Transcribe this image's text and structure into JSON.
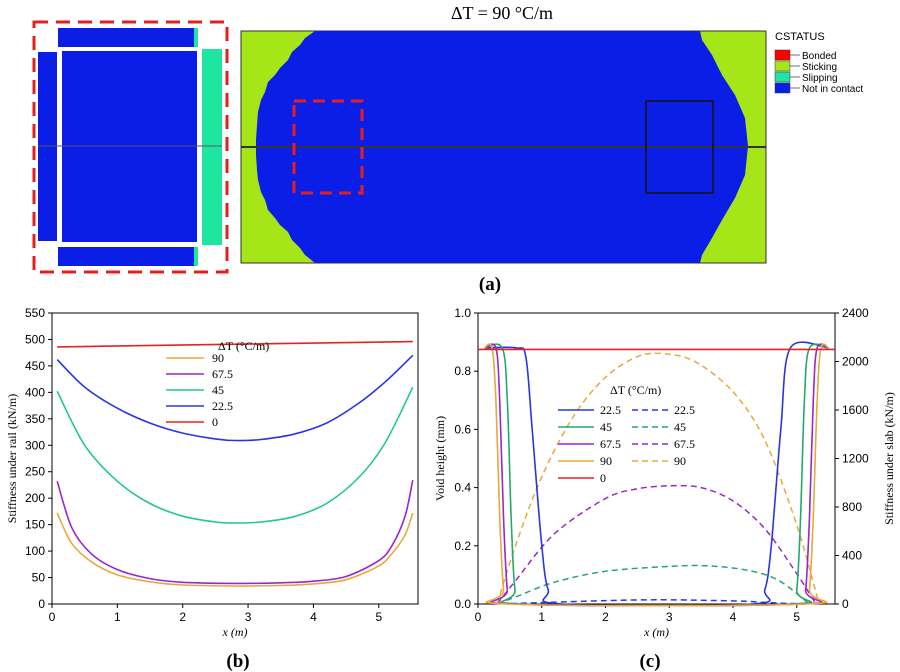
{
  "panel_a": {
    "label": "(a)",
    "title": "ΔT = 90 °C/m",
    "legend_title": "CSTATUS",
    "legend": [
      {
        "label": "Bonded",
        "color": "#ff0000"
      },
      {
        "label": "Sticking",
        "color": "#a6e619"
      },
      {
        "label": "Slipping",
        "color": "#1ee6a0"
      },
      {
        "label": "Not in contact",
        "color": "#0a1ee6"
      }
    ],
    "colors": {
      "blue": "#0a1ee6",
      "green": "#a6e619",
      "teal": "#1ee6a0",
      "red_dash": "#e4201e"
    }
  },
  "chart_data": [
    {
      "type": "line",
      "label": "(b)",
      "xlabel": "x (m)",
      "ylabel": "Stiffness under rail (kN/m)",
      "xlim": [
        0,
        5.6
      ],
      "ylim": [
        0,
        550
      ],
      "xticks": [
        0,
        1,
        2,
        3,
        4,
        5
      ],
      "yticks": [
        0,
        50,
        100,
        150,
        200,
        250,
        300,
        350,
        400,
        450,
        500,
        550
      ],
      "legend_title": "ΔT (°C/m)",
      "series": [
        {
          "name": "90",
          "color": "#e8a93a",
          "x": [
            0.08,
            0.3,
            0.6,
            1.0,
            1.5,
            2.0,
            2.8,
            3.5,
            4.0,
            4.5,
            5.0,
            5.2,
            5.4,
            5.52
          ],
          "y": [
            172,
            115,
            80,
            55,
            42,
            36,
            34,
            35,
            38,
            46,
            72,
            95,
            130,
            172
          ]
        },
        {
          "name": "67.5",
          "color": "#9b26c9",
          "x": [
            0.08,
            0.3,
            0.6,
            1.0,
            1.5,
            2.0,
            2.8,
            3.5,
            4.0,
            4.5,
            5.0,
            5.2,
            5.4,
            5.52
          ],
          "y": [
            232,
            145,
            95,
            65,
            48,
            41,
            39,
            40,
            43,
            52,
            82,
            110,
            165,
            234
          ]
        },
        {
          "name": "45",
          "color": "#25c49b",
          "x": [
            0.08,
            0.5,
            1.0,
            1.5,
            2.0,
            2.5,
            2.8,
            3.2,
            3.7,
            4.2,
            4.7,
            5.1,
            5.52
          ],
          "y": [
            402,
            300,
            232,
            190,
            166,
            155,
            153,
            155,
            165,
            190,
            240,
            305,
            410
          ]
        },
        {
          "name": "22.5",
          "color": "#2936e0",
          "x": [
            0.08,
            0.5,
            1.0,
            1.5,
            2.0,
            2.5,
            2.8,
            3.2,
            3.7,
            4.2,
            4.7,
            5.1,
            5.52
          ],
          "y": [
            462,
            410,
            370,
            342,
            323,
            312,
            309,
            311,
            321,
            342,
            380,
            420,
            470
          ]
        },
        {
          "name": "0",
          "color": "#e32323",
          "x": [
            0.08,
            5.52
          ],
          "y": [
            486,
            496
          ]
        }
      ]
    },
    {
      "type": "line",
      "label": "(c)",
      "xlabel": "x (m)",
      "ylabel": "Void height (mm)",
      "y2label": "Stiffness under slab (kN/m)",
      "xlim": [
        0,
        5.6
      ],
      "ylim": [
        0,
        1.0
      ],
      "y2lim": [
        0,
        2400
      ],
      "xticks": [
        0,
        1,
        2,
        3,
        4,
        5
      ],
      "yticks": [
        0.0,
        0.2,
        0.4,
        0.6,
        0.8,
        1.0
      ],
      "y2ticks": [
        0,
        400,
        800,
        1200,
        1600,
        2000,
        2400
      ],
      "legend_title": "ΔT (°C/m)",
      "legend_rows": [
        {
          "solid": "22.5",
          "dashed": "22.5",
          "color": "#2936e0"
        },
        {
          "solid": "45",
          "dashed": "45",
          "color": "#25a86e"
        },
        {
          "solid": "67.5",
          "dashed": "67.5",
          "color": "#9b26c9"
        },
        {
          "solid": "90",
          "dashed": "90",
          "color": "#e8a93a"
        },
        {
          "solid": "0",
          "dashed": "",
          "color": "#e32323"
        }
      ],
      "void_height_series": [
        {
          "name": "22.5",
          "color": "#2936e0",
          "x": [
            0.1,
            0.6,
            0.75,
            0.85,
            1.0,
            1.1,
            1.3,
            4.3,
            4.5,
            4.6,
            4.75,
            4.9,
            5.5
          ],
          "y": [
            0.88,
            0.88,
            0.85,
            0.6,
            0.2,
            0.05,
            0.0,
            0.0,
            0.05,
            0.2,
            0.6,
            0.88,
            0.88
          ]
        },
        {
          "name": "45",
          "color": "#25a86e",
          "x": [
            0.1,
            0.38,
            0.46,
            0.52,
            0.58,
            0.7,
            4.9,
            5.0,
            5.06,
            5.12,
            5.2,
            5.5
          ],
          "y": [
            0.88,
            0.88,
            0.7,
            0.3,
            0.05,
            0.0,
            0.0,
            0.05,
            0.3,
            0.7,
            0.88,
            0.88
          ]
        },
        {
          "name": "67.5",
          "color": "#9b26c9",
          "x": [
            0.1,
            0.28,
            0.34,
            0.4,
            0.46,
            0.55,
            5.05,
            5.14,
            5.2,
            5.26,
            5.32,
            5.5
          ],
          "y": [
            0.88,
            0.88,
            0.7,
            0.3,
            0.05,
            0.0,
            0.0,
            0.05,
            0.3,
            0.7,
            0.88,
            0.88
          ]
        },
        {
          "name": "90",
          "color": "#e8a93a",
          "x": [
            0.1,
            0.22,
            0.28,
            0.34,
            0.4,
            0.48,
            5.12,
            5.2,
            5.26,
            5.32,
            5.38,
            5.5
          ],
          "y": [
            0.88,
            0.88,
            0.7,
            0.3,
            0.05,
            0.0,
            0.0,
            0.05,
            0.3,
            0.7,
            0.88,
            0.88
          ]
        },
        {
          "name": "0",
          "color": "#e32323",
          "x": [
            0.0,
            5.6
          ],
          "y": [
            0.875,
            0.875
          ]
        }
      ],
      "slab_stiffness_series": [
        {
          "name": "22.5",
          "color": "#2936e0",
          "x": [
            0.2,
            0.6,
            1.2,
            2.0,
            2.8,
            3.6,
            4.2,
            4.6,
            5.2
          ],
          "y": [
            0,
            5,
            15,
            28,
            35,
            30,
            22,
            10,
            0
          ]
        },
        {
          "name": "45",
          "color": "#25a86e",
          "x": [
            0.3,
            0.6,
            1.2,
            2.0,
            3.0,
            3.6,
            4.2,
            4.7,
            5.2
          ],
          "y": [
            0,
            60,
            180,
            270,
            310,
            315,
            280,
            200,
            0
          ]
        },
        {
          "name": "67.5",
          "color": "#9b26c9",
          "x": [
            0.3,
            0.6,
            1.2,
            2.0,
            2.5,
            3.0,
            3.5,
            4.0,
            4.5,
            5.0,
            5.3
          ],
          "y": [
            0,
            200,
            580,
            870,
            950,
            975,
            960,
            850,
            620,
            250,
            0
          ]
        },
        {
          "name": "90",
          "color": "#e8a93a",
          "x": [
            0.3,
            0.6,
            1.0,
            1.5,
            2.0,
            2.5,
            2.9,
            3.4,
            4.0,
            4.5,
            5.0,
            5.35
          ],
          "y": [
            0,
            500,
            1050,
            1550,
            1870,
            2040,
            2065,
            2000,
            1750,
            1350,
            650,
            0
          ]
        }
      ]
    }
  ]
}
